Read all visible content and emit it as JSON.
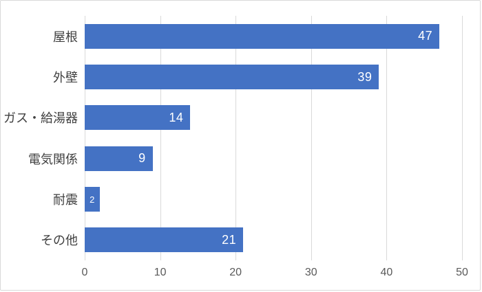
{
  "chart_data": {
    "type": "bar",
    "orientation": "horizontal",
    "title": "",
    "xlabel": "",
    "ylabel": "",
    "categories": [
      "屋根",
      "外壁",
      "ガス・給湯器",
      "電気関係",
      "耐震",
      "その他"
    ],
    "values": [
      47,
      39,
      14,
      9,
      2,
      21
    ],
    "data_labels": [
      "47",
      "39",
      "14",
      "9",
      "2",
      "21"
    ],
    "data_label_position": "inside-end",
    "x_ticks": [
      "0",
      "10",
      "20",
      "30",
      "40",
      "50"
    ],
    "x_tick_values": [
      0,
      10,
      20,
      30,
      40,
      50
    ],
    "xlim": [
      0,
      50
    ],
    "grid": "vertical",
    "legend_position": "none",
    "colors": {
      "bar": "#4472c4",
      "data_label": "#ffffff",
      "category_label": "#404040",
      "tick_label": "#595959",
      "gridline": "#d9d9d9",
      "border": "#d9d9d9",
      "background": "#ffffff"
    }
  }
}
